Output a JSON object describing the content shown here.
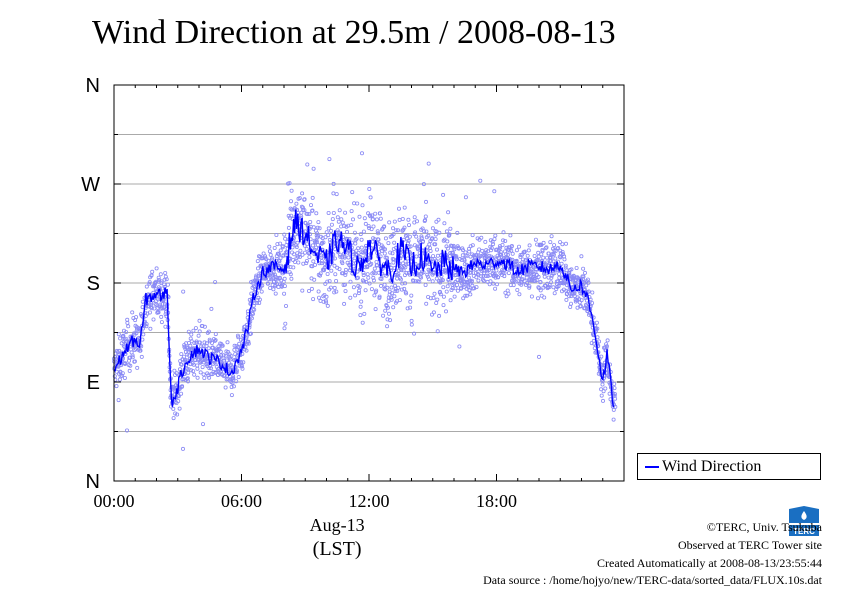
{
  "chart_data": {
    "type": "scatter",
    "title": "Wind Direction at 29.5m / 2008-08-13",
    "x_unit": "hours",
    "xlim": [
      0,
      24
    ],
    "x_ticks": [
      {
        "value": 0,
        "label": "00:00"
      },
      {
        "value": 6,
        "label": "06:00"
      },
      {
        "value": 12,
        "label": "12:00"
      },
      {
        "value": 18,
        "label": "18:00"
      }
    ],
    "x_date_label": "Aug-13",
    "x_axis_label": "(LST)",
    "ylim": [
      0,
      360
    ],
    "y_ticks": [
      {
        "value": 0,
        "label": "N"
      },
      {
        "value": 90,
        "label": "E"
      },
      {
        "value": 180,
        "label": "S"
      },
      {
        "value": 270,
        "label": "W"
      },
      {
        "value": 360,
        "label": "N"
      }
    ],
    "grid": true,
    "legend": "bottom-right",
    "series": [
      {
        "name": "Wind Direction",
        "color": "#0000ff",
        "x": [
          0.0,
          0.5,
          1.0,
          1.2,
          1.5,
          2.0,
          2.3,
          2.5,
          2.7,
          3.0,
          3.3,
          3.6,
          4.0,
          4.5,
          5.0,
          5.5,
          6.0,
          6.3,
          6.6,
          7.0,
          7.5,
          8.0,
          8.5,
          9.0,
          9.5,
          10.0,
          10.5,
          11.0,
          11.5,
          12.0,
          12.5,
          13.0,
          13.5,
          14.0,
          14.5,
          15.0,
          15.5,
          16.0,
          16.5,
          17.0,
          17.5,
          18.0,
          18.5,
          19.0,
          19.5,
          20.0,
          20.5,
          21.0,
          21.5,
          22.0,
          22.3,
          22.6,
          23.0,
          23.2,
          23.5
        ],
        "values": [
          100,
          118,
          130,
          120,
          165,
          170,
          168,
          175,
          70,
          85,
          105,
          115,
          120,
          112,
          108,
          98,
          118,
          140,
          170,
          190,
          195,
          192,
          235,
          225,
          205,
          198,
          220,
          210,
          192,
          215,
          200,
          190,
          210,
          195,
          205,
          190,
          198,
          192,
          190,
          198,
          196,
          200,
          198,
          190,
          195,
          195,
          192,
          198,
          175,
          178,
          165,
          140,
          90,
          115,
          70
        ]
      }
    ]
  },
  "legend": {
    "label": "Wind Direction"
  },
  "footer": {
    "copyright": "©TERC, Univ. Tsukuba",
    "observed": "Observed at TERC Tower site",
    "created": "Created Automatically at 2008-08-13/23:55:44",
    "source": "Data source : /home/hojyo/new/TERC-data/sorted_data/FLUX.10s.dat"
  },
  "logo": {
    "text": "TERC",
    "icon": "terc-logo-icon",
    "color": "#1a6fc2"
  }
}
